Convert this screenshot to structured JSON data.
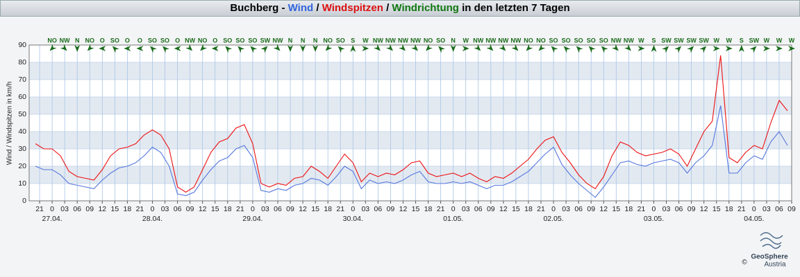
{
  "chart_data": {
    "type": "line",
    "title_parts": [
      {
        "text": "Buchberg - ",
        "color": "#000000"
      },
      {
        "text": "Wind",
        "color": "#3366dd"
      },
      {
        "text": " / ",
        "color": "#000000"
      },
      {
        "text": "Windspitzen",
        "color": "#dd1111"
      },
      {
        "text": " / ",
        "color": "#000000"
      },
      {
        "text": "Windrichtung",
        "color": "#117711"
      },
      {
        "text": " in den letzten 7 Tagen",
        "color": "#000000"
      }
    ],
    "y_label": "Wind / Windspitzen in km/h",
    "xlim": [
      -5.5,
      177
    ],
    "ylim": [
      0,
      90
    ],
    "yticks": [
      0,
      10,
      20,
      30,
      40,
      50,
      60,
      70,
      80,
      90
    ],
    "grid": true,
    "band_color": "#e3e9f1",
    "xticks": [
      {
        "value": -3,
        "label": "21"
      },
      0,
      {
        "value": 3,
        "label": "03"
      },
      {
        "value": 6,
        "label": "06"
      },
      {
        "value": 9,
        "label": "09"
      },
      {
        "value": 12,
        "label": "12"
      },
      {
        "value": 15,
        "label": "15"
      },
      {
        "value": 18,
        "label": "18"
      },
      {
        "value": 21,
        "label": "21"
      },
      {
        "value": 24,
        "label": "0"
      },
      {
        "value": 27,
        "label": "03"
      },
      {
        "value": 30,
        "label": "06"
      },
      {
        "value": 33,
        "label": "09"
      },
      {
        "value": 36,
        "label": "12"
      },
      {
        "value": 39,
        "label": "15"
      },
      {
        "value": 42,
        "label": "18"
      },
      {
        "value": 45,
        "label": "21"
      },
      {
        "value": 48,
        "label": "0"
      },
      {
        "value": 51,
        "label": "03"
      },
      {
        "value": 54,
        "label": "06"
      },
      {
        "value": 57,
        "label": "09"
      },
      {
        "value": 60,
        "label": "12"
      },
      {
        "value": 63,
        "label": "15"
      },
      {
        "value": 66,
        "label": "18"
      },
      {
        "value": 69,
        "label": "21"
      },
      {
        "value": 72,
        "label": "0"
      },
      {
        "value": 75,
        "label": "03"
      },
      {
        "value": 78,
        "label": "06"
      },
      {
        "value": 81,
        "label": "09"
      },
      {
        "value": 84,
        "label": "12"
      },
      {
        "value": 87,
        "label": "15"
      },
      {
        "value": 90,
        "label": "18"
      },
      {
        "value": 93,
        "label": "21"
      },
      {
        "value": 96,
        "label": "0"
      },
      {
        "value": 99,
        "label": "03"
      },
      {
        "value": 102,
        "label": "06"
      },
      {
        "value": 105,
        "label": "09"
      },
      {
        "value": 108,
        "label": "12"
      },
      {
        "value": 111,
        "label": "15"
      },
      {
        "value": 114,
        "label": "18"
      },
      {
        "value": 117,
        "label": "21"
      },
      {
        "value": 120,
        "label": "0"
      },
      {
        "value": 123,
        "label": "03"
      },
      {
        "value": 126,
        "label": "06"
      },
      {
        "value": 129,
        "label": "09"
      },
      {
        "value": 132,
        "label": "12"
      },
      {
        "value": 135,
        "label": "15"
      },
      {
        "value": 138,
        "label": "18"
      },
      {
        "value": 141,
        "label": "21"
      },
      {
        "value": 144,
        "label": "0"
      },
      {
        "value": 147,
        "label": "03"
      },
      {
        "value": 150,
        "label": "06"
      },
      {
        "value": 153,
        "label": "09"
      },
      {
        "value": 156,
        "label": "12"
      },
      {
        "value": 159,
        "label": "15"
      },
      {
        "value": 162,
        "label": "18"
      },
      {
        "value": 165,
        "label": "21"
      },
      {
        "value": 168,
        "label": "0"
      },
      {
        "value": 171,
        "label": "03"
      },
      {
        "value": 174,
        "label": "06"
      },
      {
        "value": 177,
        "label": "09"
      }
    ],
    "date_ticks": [
      {
        "value": 0,
        "label": "27.04."
      },
      {
        "value": 24,
        "label": "28.04."
      },
      {
        "value": 48,
        "label": "29.04."
      },
      {
        "value": 72,
        "label": "30.04."
      },
      {
        "value": 96,
        "label": "01.05."
      },
      {
        "value": 120,
        "label": "02.05."
      },
      {
        "value": 144,
        "label": "03.05."
      },
      {
        "value": 168,
        "label": "04.05."
      }
    ],
    "x": [
      -4,
      -2,
      0,
      2,
      4,
      6,
      8,
      10,
      12,
      14,
      16,
      18,
      20,
      22,
      24,
      26,
      28,
      30,
      32,
      34,
      36,
      38,
      40,
      42,
      44,
      46,
      48,
      50,
      52,
      54,
      56,
      58,
      60,
      62,
      64,
      66,
      68,
      70,
      72,
      74,
      76,
      78,
      80,
      82,
      84,
      86,
      88,
      90,
      92,
      94,
      96,
      98,
      100,
      102,
      104,
      106,
      108,
      110,
      112,
      114,
      116,
      118,
      120,
      122,
      124,
      126,
      128,
      130,
      132,
      134,
      136,
      138,
      140,
      142,
      144,
      146,
      148,
      150,
      152,
      154,
      156,
      158,
      160,
      162,
      164,
      166,
      168,
      170,
      172,
      174,
      176
    ],
    "series": [
      {
        "name": "Windspitzen",
        "color": "#ee1111",
        "values": [
          33,
          30,
          30,
          26,
          17,
          14,
          13,
          12,
          18,
          26,
          30,
          31,
          33,
          38,
          41,
          38,
          30,
          8,
          5,
          8,
          18,
          28,
          34,
          36,
          42,
          44,
          33,
          10,
          8,
          10,
          9,
          13,
          14,
          20,
          17,
          13,
          20,
          27,
          22,
          11,
          16,
          14,
          16,
          15,
          18,
          22,
          23,
          16,
          14,
          15,
          16,
          14,
          16,
          13,
          11,
          14,
          13,
          16,
          20,
          24,
          30,
          35,
          37,
          28,
          22,
          15,
          10,
          7,
          14,
          26,
          34,
          32,
          28,
          26,
          27,
          28,
          30,
          27,
          20,
          30,
          40,
          46,
          84,
          25,
          22,
          28,
          32,
          30,
          45,
          58,
          52
        ]
      },
      {
        "name": "Wind",
        "color": "#5577dd",
        "values": [
          20,
          18,
          18,
          15,
          10,
          9,
          8,
          7,
          12,
          16,
          19,
          20,
          22,
          26,
          31,
          28,
          20,
          4,
          3,
          5,
          12,
          18,
          23,
          25,
          30,
          32,
          25,
          6,
          5,
          7,
          6,
          9,
          10,
          13,
          12,
          9,
          14,
          20,
          17,
          7,
          12,
          10,
          11,
          10,
          12,
          15,
          17,
          11,
          10,
          10,
          11,
          10,
          11,
          9,
          7,
          9,
          9,
          11,
          14,
          17,
          22,
          27,
          31,
          21,
          15,
          10,
          6,
          2,
          8,
          15,
          22,
          23,
          21,
          20,
          22,
          23,
          24,
          22,
          16,
          22,
          26,
          32,
          55,
          16,
          16,
          22,
          26,
          24,
          34,
          40,
          32
        ]
      }
    ],
    "wind_direction": {
      "color": "#1a6b1a",
      "x": [
        0,
        3,
        6,
        9,
        12,
        15,
        18,
        21,
        24,
        27,
        30,
        33,
        36,
        39,
        42,
        45,
        48,
        51,
        54,
        57,
        60,
        63,
        66,
        69,
        72,
        75,
        78,
        81,
        84,
        87,
        90,
        93,
        96,
        99,
        102,
        105,
        108,
        111,
        114,
        117,
        120,
        123,
        126,
        129,
        132,
        135,
        138,
        141,
        144,
        147,
        150,
        153,
        156,
        159,
        162,
        165,
        168,
        171,
        174,
        177
      ],
      "labels": [
        "NO",
        "NW",
        "N",
        "NO",
        "O",
        "SO",
        "O",
        "O",
        "SO",
        "SO",
        "O",
        "NW",
        "NO",
        "O",
        "SO",
        "SO",
        "SO",
        "SW",
        "NW",
        "N",
        "N",
        "N",
        "NO",
        "SO",
        "S",
        "W",
        "NW",
        "NW",
        "NW",
        "NW",
        "NO",
        "SO",
        "N",
        "W",
        "NW",
        "NW",
        "NW",
        "NW",
        "NO",
        "NO",
        "SO",
        "SO",
        "SO",
        "SO",
        "SO",
        "NW",
        "NW",
        "W",
        "S",
        "SW",
        "SW",
        "SW",
        "SW",
        "W",
        "W",
        "S",
        "SW",
        "W",
        "W",
        "W"
      ]
    },
    "logo": {
      "name": "GeoSphere",
      "sub": "Austria",
      "copyright": "©"
    }
  }
}
